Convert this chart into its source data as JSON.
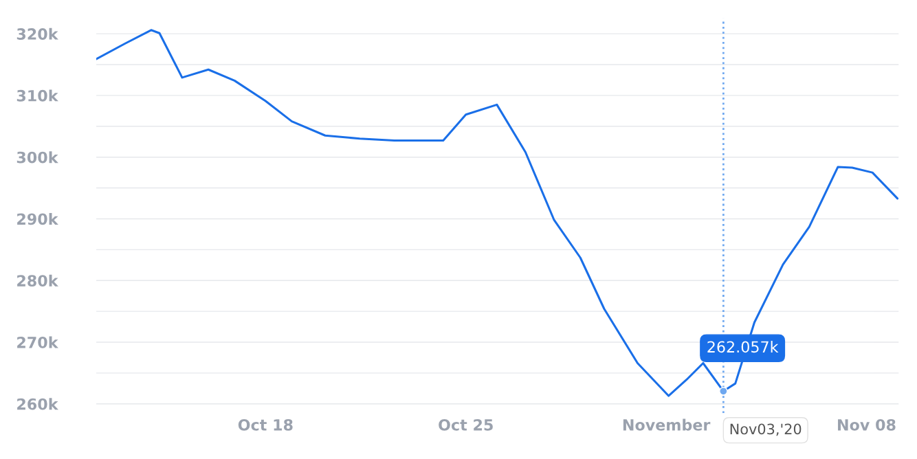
{
  "chart_data": {
    "type": "line",
    "x": [
      "2020-10-12T02:00",
      "2020-10-13T02:00",
      "2020-10-14T00:00",
      "2020-10-14T07:00",
      "2020-10-15T02:00",
      "2020-10-16T00:00",
      "2020-10-16T22:00",
      "2020-10-18T00:00",
      "2020-10-18T22:00",
      "2020-10-20T02:00",
      "2020-10-21T07:00",
      "2020-10-22T12:00",
      "2020-10-24T05:00",
      "2020-10-25T00:00",
      "2020-10-26T02:00",
      "2020-10-27T02:00",
      "2020-10-28T02:00",
      "2020-10-29T00:00",
      "2020-10-29T20:00",
      "2020-10-31T00:00",
      "2020-11-01T02:00",
      "2020-11-01T17:00",
      "2020-11-02T07:00",
      "2020-11-03T00:00",
      "2020-11-03T10:00",
      "2020-11-04T02:00",
      "2020-11-05T02:00",
      "2020-11-06T00:00",
      "2020-11-07T00:00",
      "2020-11-07T12:00",
      "2020-11-08T05:00",
      "2020-11-09T02:00"
    ],
    "series": [
      {
        "color": "#1a6fe8",
        "values": [
          315900,
          318400,
          320600,
          320100,
          312900,
          314200,
          312400,
          309100,
          305800,
          303500,
          303000,
          302700,
          302700,
          306900,
          308500,
          300800,
          289800,
          283700,
          275400,
          266600,
          261300,
          263900,
          266600,
          262057,
          263300,
          273200,
          282600,
          288700,
          298400,
          298300,
          297500,
          293300
        ]
      }
    ],
    "xlim": [
      "2020-10-12T02:00",
      "2020-11-09T03:00"
    ],
    "xticks": [
      {
        "value": "2020-10-18",
        "label": "Oct 18"
      },
      {
        "value": "2020-10-25",
        "label": "Oct 25"
      },
      {
        "value": "2020-11-01",
        "label": "November"
      },
      {
        "value": "2020-11-08",
        "label": "Nov 08"
      }
    ],
    "ylim": [
      258500,
      322500
    ],
    "yticks": [
      {
        "value": 260000,
        "label": "260k"
      },
      {
        "value": 265000,
        "label": null
      },
      {
        "value": 270000,
        "label": "270k"
      },
      {
        "value": 275000,
        "label": null
      },
      {
        "value": 280000,
        "label": "280k"
      },
      {
        "value": 285000,
        "label": null
      },
      {
        "value": 290000,
        "label": "290k"
      },
      {
        "value": 295000,
        "label": null
      },
      {
        "value": 300000,
        "label": "300k"
      },
      {
        "value": 305000,
        "label": null
      },
      {
        "value": 310000,
        "label": "310k"
      },
      {
        "value": 315000,
        "label": null
      },
      {
        "value": 320000,
        "label": "320k"
      }
    ],
    "grid": "y",
    "marker": "none",
    "line_style": "solid",
    "ref_lines": [
      {
        "axis": "x",
        "value": "2020-11-03",
        "label": "Nov03,'20",
        "color": "#6fa8f0",
        "line_style": "dotted"
      }
    ],
    "annotations": [
      {
        "text": "262.057k",
        "x": "2020-11-03",
        "y": 262057
      }
    ]
  }
}
